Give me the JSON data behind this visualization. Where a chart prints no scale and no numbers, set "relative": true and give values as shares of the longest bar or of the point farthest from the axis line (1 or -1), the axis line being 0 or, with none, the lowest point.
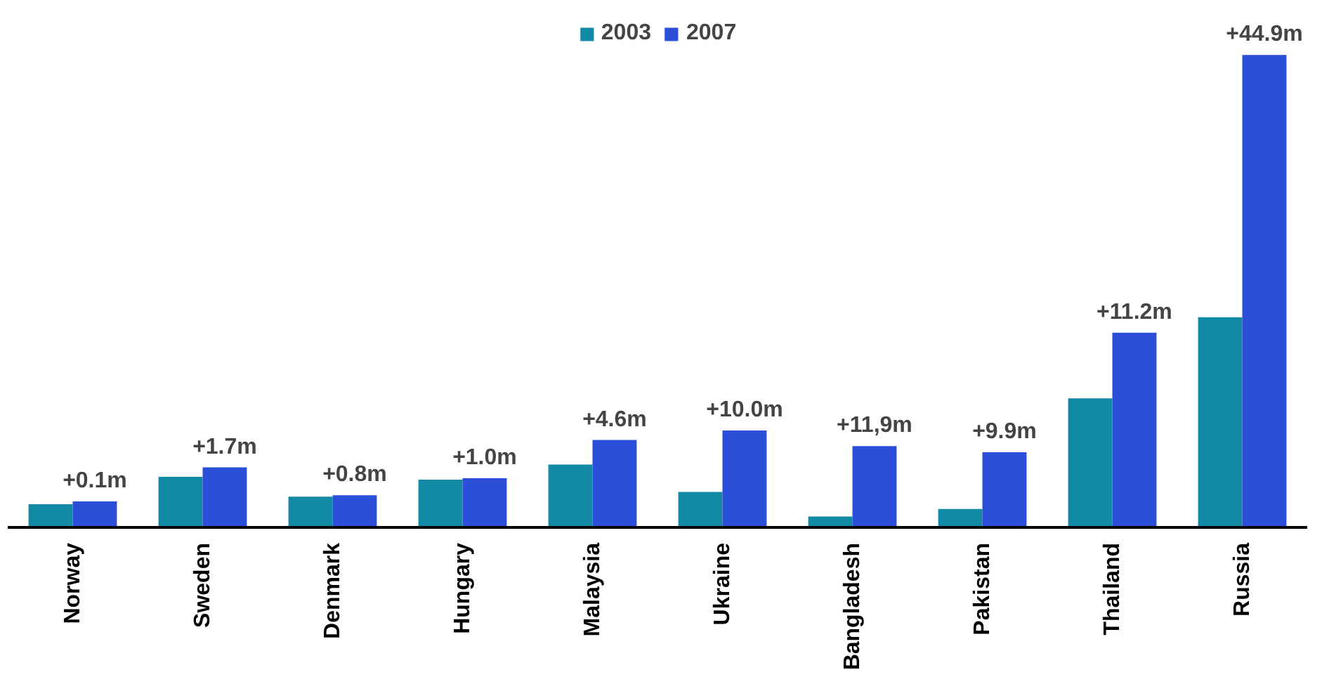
{
  "chart_data": {
    "type": "bar",
    "relative": true,
    "legend": "top",
    "grid": false,
    "categories": [
      "Norway",
      "Sweden",
      "Denmark",
      "Hungary",
      "Malaysia",
      "Ukraine",
      "Bangladesh",
      "Pakistan",
      "Thailand",
      "Russia"
    ],
    "series": [
      {
        "name": "2003",
        "color": "#128aa6",
        "values": [
          0.049,
          0.107,
          0.065,
          0.101,
          0.133,
          0.075,
          0.023,
          0.039,
          0.273,
          0.445
        ]
      },
      {
        "name": "2007",
        "color": "#2b4fd8",
        "values": [
          0.055,
          0.127,
          0.068,
          0.104,
          0.185,
          0.205,
          0.172,
          0.159,
          0.412,
          1.0
        ]
      }
    ],
    "annotations": [
      {
        "text": "+0.1m",
        "x": "Norway",
        "y": 0.055
      },
      {
        "text": "+1.7m",
        "x": "Sweden",
        "y": 0.127
      },
      {
        "text": "+0.8m",
        "x": "Denmark",
        "y": 0.068
      },
      {
        "text": "+1.0m",
        "x": "Hungary",
        "y": 0.104
      },
      {
        "text": "+4.6m",
        "x": "Malaysia",
        "y": 0.185
      },
      {
        "text": "+10.0m",
        "x": "Ukraine",
        "y": 0.205
      },
      {
        "text": "+11,9m",
        "x": "Bangladesh",
        "y": 0.172
      },
      {
        "text": "+9.9m",
        "x": "Pakistan",
        "y": 0.159
      },
      {
        "text": "+11.2m",
        "x": "Thailand",
        "y": 0.412
      },
      {
        "text": "+44.9m",
        "x": "Russia",
        "y": 1.0
      }
    ]
  }
}
